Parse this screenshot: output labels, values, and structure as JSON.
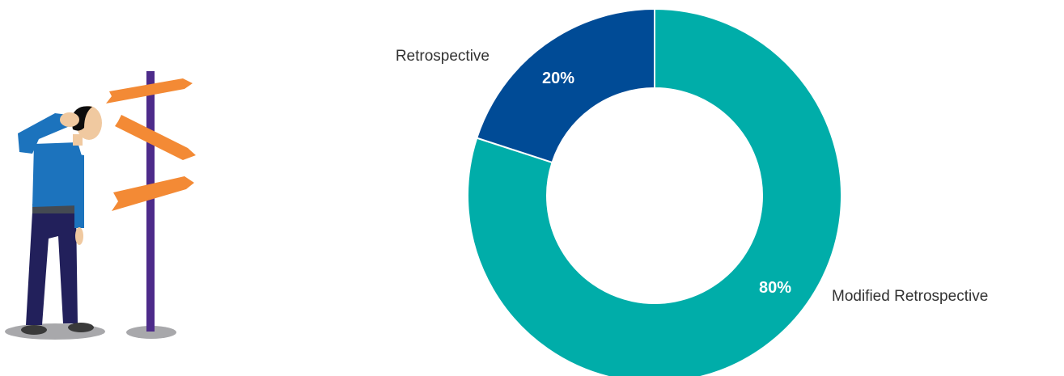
{
  "colors": {
    "retrospective": "#004b96",
    "modified_retrospective": "#00ada9",
    "illustration_sign": "#f38a35",
    "illustration_post": "#4d2b8a"
  },
  "illustration": {
    "icon": "person-at-crossroads-signpost-icon"
  },
  "chart_data": {
    "type": "pie",
    "categories": [
      "Modified Retrospective",
      "Retrospective"
    ],
    "values": [
      80,
      20
    ],
    "value_labels": [
      "80%",
      "20%"
    ],
    "title": "",
    "legend": "none"
  }
}
